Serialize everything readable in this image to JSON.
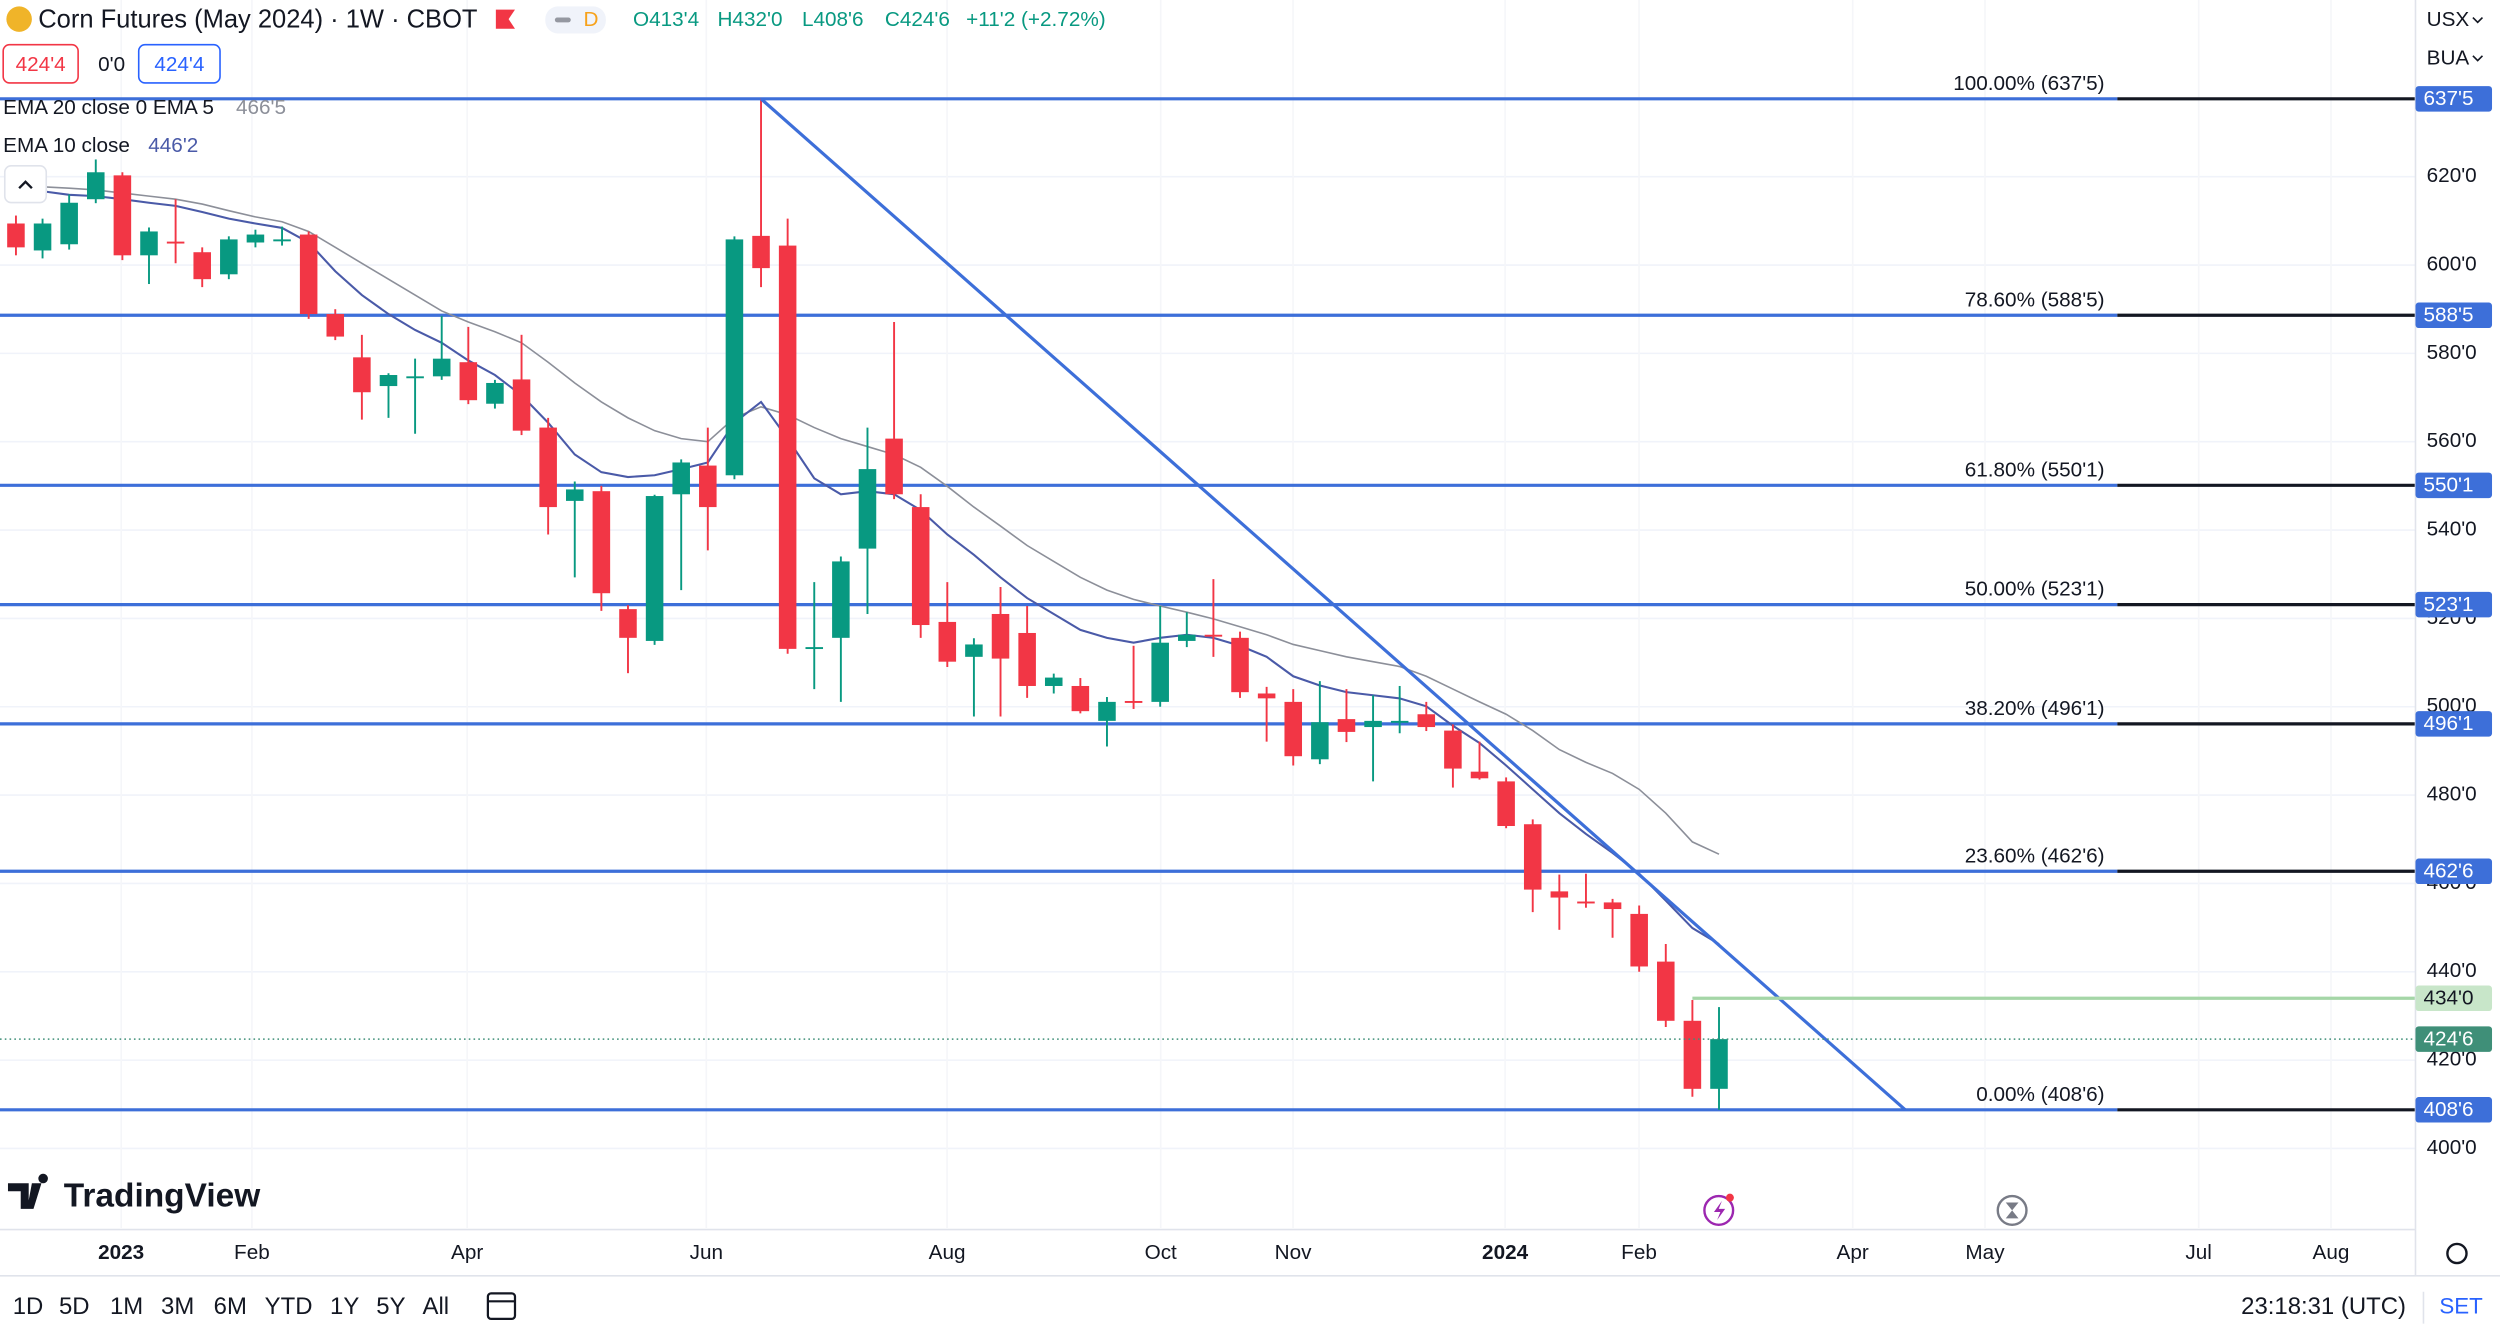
{
  "header": {
    "title": "Corn Futures (May 2024) · 1W · CBOT",
    "interval_badge": "D",
    "ohlc": [
      "O413'4",
      "H432'0",
      "L408'6",
      "C424'6"
    ],
    "change": "+11'2 (+2.72%)",
    "sell_price": "424'4",
    "spread": "0'0",
    "buy_price": "424'4",
    "currency": "USX",
    "unit": "BUA"
  },
  "chart_data": {
    "type": "candlestick",
    "ylim": [
      382,
      660
    ],
    "yticks": [
      {
        "value": 620,
        "label": "620'0"
      },
      {
        "value": 600,
        "label": "600'0"
      },
      {
        "value": 580,
        "label": "580'0"
      },
      {
        "value": 560,
        "label": "560'0"
      },
      {
        "value": 540,
        "label": "540'0"
      },
      {
        "value": 520,
        "label": "520'0"
      },
      {
        "value": 500,
        "label": "500'0"
      },
      {
        "value": 480,
        "label": "480'0"
      },
      {
        "value": 460,
        "label": "460'0"
      },
      {
        "value": 440,
        "label": "440'0"
      },
      {
        "value": 420,
        "label": "420'0"
      },
      {
        "value": 400,
        "label": "400'0"
      }
    ],
    "grid": true,
    "up_color": "#089981",
    "down_color": "#f23645",
    "open": [
      609.4,
      603.3,
      604.7,
      614.9,
      620.3,
      602.2,
      605.3,
      602.9,
      597.9,
      605.1,
      605.6,
      606.9,
      588.9,
      579.1,
      572.6,
      574.6,
      574.8,
      578,
      568.6,
      574.1,
      563.2,
      546.6,
      548.8,
      522.1,
      514.9,
      548.1,
      554.6,
      552.4,
      606.6,
      604.4,
      513.1,
      515.6,
      535.8,
      560.7,
      545.2,
      519.2,
      511.3,
      521,
      516.7,
      504.7,
      504.7,
      496.8,
      501.3,
      501.1,
      514.9,
      516.3,
      515.6,
      503,
      501.1,
      488.1,
      497.2,
      495.4,
      496.6,
      498.3,
      494.6,
      485.3,
      483.1,
      473.4,
      458.2,
      455.9,
      455.7,
      453.1,
      442.3,
      428.9,
      413.5
    ],
    "high": [
      611.2,
      610.5,
      616,
      623.9,
      621,
      608.5,
      614.9,
      604,
      606.5,
      608,
      608.7,
      607.6,
      590,
      584.2,
      575.5,
      578.8,
      588.5,
      586,
      574,
      584.2,
      565.4,
      551,
      550,
      523,
      548,
      556,
      563.2,
      606.5,
      637.625,
      610.5,
      528.2,
      534,
      563.2,
      587.1,
      548.1,
      528.2,
      515.5,
      527.1,
      522.8,
      507.5,
      506.5,
      502.2,
      513.8,
      522.8,
      521.4,
      528.9,
      517,
      504.5,
      504,
      505.8,
      504,
      502.6,
      504.7,
      501.1,
      496,
      492.1,
      484,
      474.5,
      462,
      462.2,
      456.5,
      455,
      446.3,
      433.6,
      432
    ],
    "low": [
      602.2,
      601.5,
      603.5,
      614,
      601.1,
      595.7,
      600.4,
      595,
      596.8,
      604,
      604.4,
      587.8,
      583,
      565,
      565.4,
      561.8,
      574,
      568.5,
      567.5,
      561.5,
      539,
      529.3,
      521.7,
      507.6,
      514,
      526.4,
      535.4,
      551.5,
      595,
      512,
      504,
      501.1,
      521,
      547,
      515.6,
      509,
      497.8,
      497.8,
      502,
      503,
      498.5,
      491,
      499.5,
      500,
      513.5,
      511.3,
      502,
      492.1,
      486.7,
      487,
      492,
      483.1,
      494,
      494.5,
      481.7,
      483.5,
      472.5,
      453.5,
      449.5,
      454.5,
      447.7,
      440,
      427.5,
      411.7,
      408.75
    ],
    "close": [
      604,
      609.4,
      614.1,
      621,
      602.2,
      607.6,
      605.1,
      596.8,
      605.8,
      606.9,
      605.8,
      588.9,
      583.8,
      571.2,
      575.1,
      574.8,
      578.8,
      569.4,
      573.3,
      562.5,
      545.2,
      549.2,
      525.7,
      515.6,
      547.7,
      555.3,
      545.2,
      605.8,
      599.3,
      513.1,
      513.5,
      532.9,
      553.8,
      548.1,
      518.5,
      510.2,
      514.1,
      510.9,
      504.7,
      506.6,
      499,
      501.1,
      501.1,
      514.5,
      516.3,
      516.1,
      503.3,
      501.9,
      488.8,
      496.5,
      494.3,
      496.8,
      496.8,
      495.4,
      486,
      483.8,
      473,
      458.6,
      456.8,
      455.7,
      454.2,
      441.2,
      428.9,
      413.5,
      424.75
    ],
    "series": [
      {
        "name": "EMA 20 close 0 EMA 5",
        "value_label": "466'5",
        "color": "#8c8f99",
        "values": [
          618.5,
          617.7,
          617.4,
          617,
          616.3,
          615.6,
          614.9,
          613.8,
          612.3,
          610.9,
          609.8,
          607.6,
          604,
          600.4,
          596.8,
          593.2,
          589.6,
          587.1,
          584.9,
          582.4,
          578,
          573.3,
          569,
          565.4,
          562.5,
          560.7,
          560,
          565.4,
          567.9,
          566.1,
          563.2,
          560.7,
          558.9,
          557.1,
          554.2,
          549.9,
          545.2,
          540.9,
          536.5,
          532.9,
          529.3,
          526.4,
          524.3,
          522.8,
          521.4,
          519.9,
          518.1,
          516.3,
          514.1,
          512.7,
          511.3,
          510.2,
          509.1,
          506.9,
          504,
          501.1,
          498.3,
          494.6,
          490.3,
          487.4,
          484.9,
          481.3,
          475.9,
          469.4,
          466.625
        ]
      },
      {
        "name": "EMA 10 close",
        "value_label": "446'2",
        "color": "#4a5aa8",
        "values": [
          617,
          616.7,
          615.9,
          615.6,
          614.9,
          614.1,
          613.4,
          612,
          610.5,
          609.4,
          608.4,
          605.1,
          598.6,
          593.2,
          588.9,
          585.3,
          582.4,
          578.4,
          575.1,
          570.5,
          564.3,
          557.1,
          553.1,
          552,
          552.4,
          553.8,
          555.3,
          564.3,
          569,
          560.7,
          551.7,
          548.1,
          548.8,
          548.1,
          544.5,
          539,
          534.4,
          529.3,
          524.6,
          521,
          517.4,
          515.6,
          514.5,
          515.6,
          516.3,
          515.6,
          513.8,
          511.3,
          506.9,
          504.8,
          503.3,
          502.6,
          501.9,
          500.1,
          495.7,
          491.8,
          486.7,
          481.3,
          475.9,
          471.2,
          466.9,
          462.2,
          456.1,
          449.9,
          446.25
        ]
      }
    ],
    "fib_levels": [
      {
        "value": 637.625,
        "label": "100.00% (637'5)",
        "tag": "637'5"
      },
      {
        "value": 588.625,
        "label": "78.60% (588'5)",
        "tag": "588'5"
      },
      {
        "value": 550.125,
        "label": "61.80% (550'1)",
        "tag": "550'1"
      },
      {
        "value": 523.125,
        "label": "50.00% (523'1)",
        "tag": "523'1"
      },
      {
        "value": 496.125,
        "label": "38.20% (496'1)",
        "tag": "496'1"
      },
      {
        "value": 462.75,
        "label": "23.60% (462'6)",
        "tag": "462'6"
      },
      {
        "value": 408.75,
        "label": "0.00% (408'6)",
        "tag": "408'6"
      }
    ],
    "fib_color": "#3d6fd9",
    "trendline": {
      "from": [
        28,
        637.625
      ],
      "to": [
        71,
        408.75
      ],
      "color": "#3d6fd9"
    },
    "hline": {
      "value": 434,
      "tag": "434'0",
      "from": 63,
      "color": "#a5d6a7"
    },
    "last_price": {
      "value": 424.75,
      "tag": "424'6",
      "color": "#3f8f78"
    },
    "time_labels": [
      "2023",
      "Feb",
      "Apr",
      "Jun",
      "Aug",
      "Oct",
      "Nov",
      "2024",
      "Feb",
      "Apr",
      "May",
      "Jul",
      "Aug"
    ]
  },
  "branding": "TradingView",
  "toolbar": {
    "ranges": [
      "1D",
      "5D",
      "1M",
      "3M",
      "6M",
      "YTD",
      "1Y",
      "5Y",
      "All"
    ],
    "clock": "23:18:31 (UTC)",
    "settings": "SET"
  }
}
